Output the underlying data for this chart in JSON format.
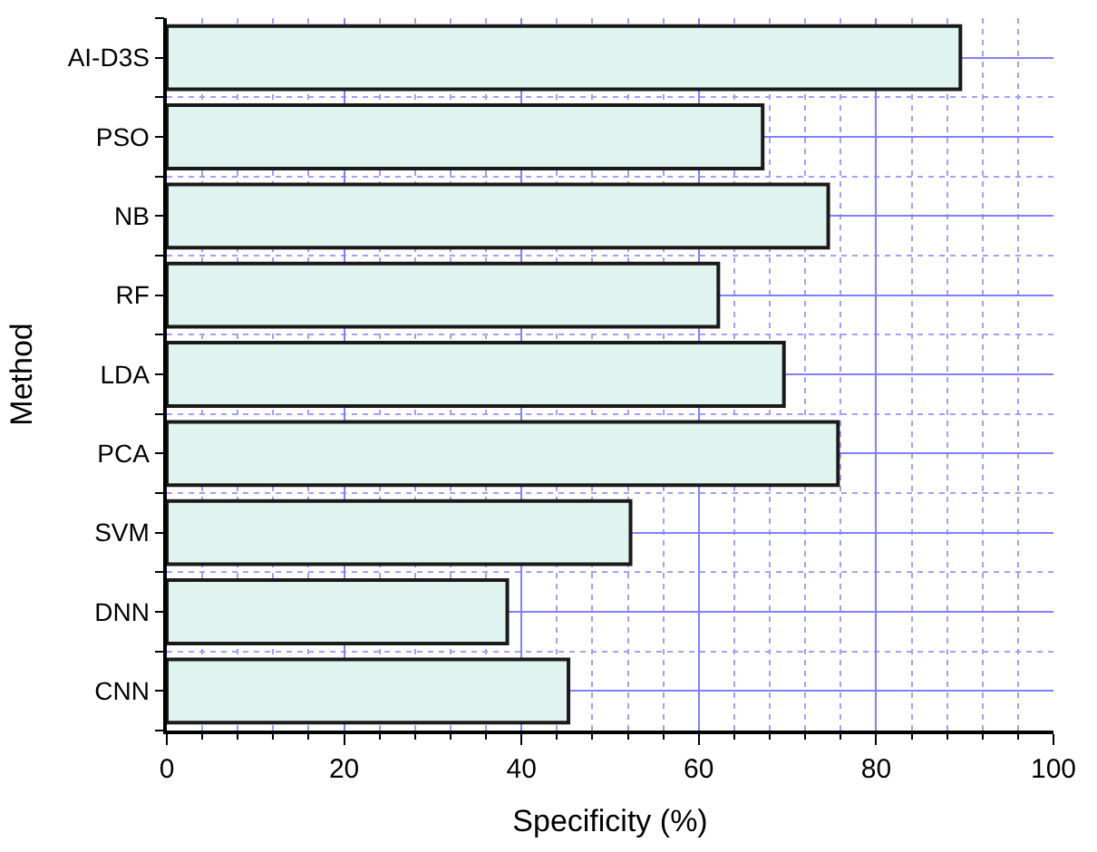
{
  "chart_data": {
    "type": "bar",
    "orientation": "horizontal",
    "xlabel": "Specificity (%)",
    "ylabel": "Method",
    "categories": [
      "AI-D3S",
      "PSO",
      "NB",
      "RF",
      "LDA",
      "PCA",
      "SVM",
      "DNN",
      "CNN"
    ],
    "values": [
      89.5,
      67.2,
      74.6,
      62.2,
      69.6,
      75.7,
      52.3,
      38.4,
      45.3
    ],
    "color": "#dff3ef",
    "xlim": [
      0,
      100
    ],
    "xticks": [
      0,
      20,
      40,
      60,
      80,
      100
    ],
    "grid": true
  }
}
